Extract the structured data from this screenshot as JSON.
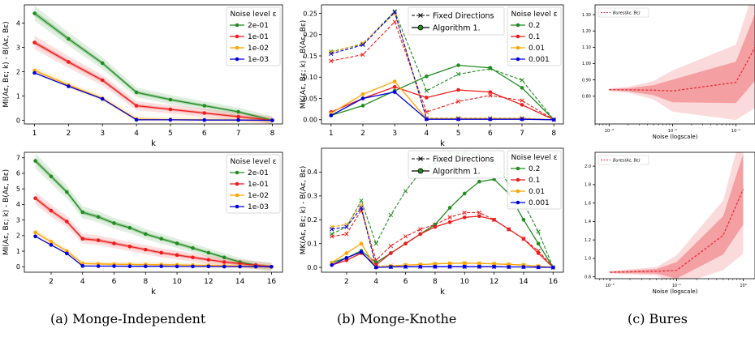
{
  "captions": [
    "(a) Monge-Independent",
    "(b) Monge-Knothe",
    "(c) Bures"
  ],
  "colors": {
    "s0": "#228B22",
    "s1": "#EE1C1C",
    "s2": "#FFA500",
    "s3": "#0000E0",
    "bures": "#E8303A"
  },
  "chart_data": [
    {
      "id": "mi-top",
      "type": "line",
      "grid": false,
      "legend_position": "top-right",
      "xlabel": "k",
      "ylabel": "MI(Aε, Bε; k) - B(Aε, Bε)",
      "xlim": [
        0.7,
        8.3
      ],
      "ylim": [
        -0.15,
        4.75
      ],
      "xticks": [
        1,
        2,
        3,
        4,
        5,
        6,
        7,
        8
      ],
      "yticks": [
        0,
        1,
        2,
        3,
        4
      ],
      "legend_title": "Noise level ε",
      "x": [
        1,
        2,
        3,
        4,
        5,
        6,
        7,
        8
      ],
      "series": [
        {
          "name": "2e-01",
          "values": [
            4.4,
            3.35,
            2.35,
            1.15,
            0.85,
            0.6,
            0.35,
            0.0
          ]
        },
        {
          "name": "1e-01",
          "values": [
            3.2,
            2.4,
            1.65,
            0.6,
            0.45,
            0.3,
            0.15,
            0.0
          ]
        },
        {
          "name": "1e-02",
          "values": [
            2.05,
            1.45,
            0.9,
            0.05,
            0.03,
            0.02,
            0.01,
            0.0
          ]
        },
        {
          "name": "1e-03",
          "values": [
            1.95,
            1.4,
            0.88,
            0.02,
            0.02,
            0.01,
            0.01,
            0.0
          ]
        }
      ]
    },
    {
      "id": "mk-top",
      "type": "line",
      "grid": false,
      "legend_position": "top-right",
      "xlabel": "k",
      "ylabel": "MK(Aε, Bε; k) - B(Aε, Bε)",
      "xlim": [
        0.7,
        8.3
      ],
      "ylim": [
        -0.01,
        0.27
      ],
      "xticks": [
        1,
        2,
        3,
        4,
        5,
        6,
        7,
        8
      ],
      "yticks": [
        0.0,
        0.05,
        0.1,
        0.15,
        0.2,
        0.25
      ],
      "legend_title": "Noise level ε",
      "style_legend": [
        "Fixed Directions",
        "Algorithm 1."
      ],
      "x": [
        1,
        2,
        3,
        4,
        5,
        6,
        7,
        8
      ],
      "series": [
        {
          "name": "0.2",
          "values": [
            0.01,
            0.033,
            0.068,
            0.102,
            0.128,
            0.122,
            0.075,
            0.0
          ]
        },
        {
          "name": "0.1",
          "values": [
            0.018,
            0.05,
            0.077,
            0.052,
            0.07,
            0.065,
            0.035,
            0.0
          ]
        },
        {
          "name": "0.01",
          "values": [
            0.015,
            0.06,
            0.09,
            0.002,
            0.002,
            0.002,
            0.002,
            0.0
          ]
        },
        {
          "name": "0.001",
          "values": [
            0.01,
            0.05,
            0.065,
            0.001,
            0.001,
            0.001,
            0.001,
            0.0
          ]
        }
      ],
      "fixed_series": [
        {
          "name": "0.2",
          "values": [
            0.16,
            0.178,
            0.255,
            0.068,
            0.107,
            0.12,
            0.093,
            0.0
          ]
        },
        {
          "name": "0.1",
          "values": [
            0.138,
            0.153,
            0.23,
            0.018,
            0.043,
            0.057,
            0.045,
            0.0
          ]
        },
        {
          "name": "0.01",
          "values": [
            0.158,
            0.18,
            0.25,
            0.004,
            0.004,
            0.004,
            0.004,
            0.0
          ]
        },
        {
          "name": "0.001",
          "values": [
            0.155,
            0.176,
            0.253,
            0.002,
            0.002,
            0.002,
            0.002,
            0.0
          ]
        }
      ]
    },
    {
      "id": "bures-top",
      "type": "line",
      "grid": false,
      "legend_position": "top-left",
      "xscale": "log",
      "xlabel": "Noise (logscale)",
      "ylabel": "",
      "xlim": [
        0.0006,
        0.2
      ],
      "ylim": [
        0.63,
        1.36
      ],
      "xticks": [
        0.001,
        0.01,
        0.1
      ],
      "xtick_labels": [
        "10⁻³",
        "10⁻²",
        "10⁻¹"
      ],
      "yticks": [
        0.8,
        0.9,
        1.0,
        1.1,
        1.2,
        1.3
      ],
      "legend": "Bures(Aε, Bε)",
      "x": [
        0.001,
        0.002,
        0.005,
        0.01,
        0.1,
        0.2
      ],
      "series": [
        {
          "name": "Bures(Aε, Bε)",
          "values": [
            0.84,
            0.839,
            0.837,
            0.832,
            0.885,
            1.1
          ]
        }
      ]
    },
    {
      "id": "mi-bottom",
      "type": "line",
      "grid": false,
      "legend_position": "top-right",
      "xlabel": "k",
      "ylabel": "MI(Aε, Bε; k) - B(Aε, Bε)",
      "xlim": [
        0.3,
        16.7
      ],
      "ylim": [
        -0.35,
        7.35
      ],
      "xticks": [
        2,
        4,
        6,
        8,
        10,
        12,
        14,
        16
      ],
      "yticks": [
        0,
        1,
        2,
        3,
        4,
        5,
        6,
        7
      ],
      "legend_title": "Noise level ε",
      "x": [
        1,
        2,
        3,
        4,
        5,
        6,
        7,
        8,
        9,
        10,
        11,
        12,
        13,
        14,
        15,
        16
      ],
      "series": [
        {
          "name": "2e-01",
          "values": [
            6.8,
            5.8,
            4.8,
            3.5,
            3.2,
            2.8,
            2.5,
            2.1,
            1.8,
            1.5,
            1.2,
            0.9,
            0.6,
            0.3,
            0.1,
            0.0
          ]
        },
        {
          "name": "1e-01",
          "values": [
            4.4,
            3.6,
            2.9,
            1.8,
            1.7,
            1.5,
            1.3,
            1.1,
            0.9,
            0.75,
            0.6,
            0.45,
            0.3,
            0.2,
            0.1,
            0.0
          ]
        },
        {
          "name": "1e-02",
          "values": [
            2.2,
            1.6,
            1.0,
            0.2,
            0.18,
            0.16,
            0.15,
            0.14,
            0.13,
            0.12,
            0.1,
            0.08,
            0.06,
            0.04,
            0.02,
            0.0
          ]
        },
        {
          "name": "1e-03",
          "values": [
            1.95,
            1.4,
            0.85,
            0.05,
            0.04,
            0.04,
            0.03,
            0.03,
            0.03,
            0.02,
            0.02,
            0.02,
            0.01,
            0.01,
            0.01,
            0.0
          ]
        }
      ]
    },
    {
      "id": "mk-bottom",
      "type": "line",
      "grid": false,
      "legend_position": "top-right",
      "xlabel": "k",
      "ylabel": "MK(Aε, Bε; k) - B(Aε, Bε)",
      "xlim": [
        0.3,
        16.7
      ],
      "ylim": [
        -0.02,
        0.5
      ],
      "xticks": [
        2,
        4,
        6,
        8,
        10,
        12,
        14,
        16
      ],
      "yticks": [
        0.0,
        0.1,
        0.2,
        0.3,
        0.4
      ],
      "legend_title": "Noise level ε",
      "style_legend": [
        "Fixed Directions",
        "Algorithm 1."
      ],
      "x": [
        1,
        2,
        3,
        4,
        5,
        6,
        7,
        8,
        9,
        10,
        11,
        12,
        13,
        14,
        15,
        16
      ],
      "series": [
        {
          "name": "0.2",
          "values": [
            0.02,
            0.04,
            0.07,
            0.02,
            0.06,
            0.1,
            0.14,
            0.18,
            0.25,
            0.31,
            0.36,
            0.37,
            0.31,
            0.2,
            0.1,
            0.0
          ]
        },
        {
          "name": "0.1",
          "values": [
            0.01,
            0.03,
            0.06,
            0.01,
            0.06,
            0.1,
            0.14,
            0.17,
            0.19,
            0.21,
            0.215,
            0.2,
            0.16,
            0.12,
            0.06,
            0.0
          ]
        },
        {
          "name": "0.01",
          "values": [
            0.02,
            0.06,
            0.1,
            0.0,
            0.005,
            0.01,
            0.012,
            0.015,
            0.017,
            0.018,
            0.017,
            0.015,
            0.013,
            0.01,
            0.005,
            0.0
          ]
        },
        {
          "name": "0.001",
          "values": [
            0.01,
            0.04,
            0.065,
            0.0,
            0.002,
            0.003,
            0.003,
            0.003,
            0.003,
            0.003,
            0.003,
            0.003,
            0.002,
            0.002,
            0.001,
            0.0
          ]
        }
      ],
      "fixed_series": [
        {
          "name": "0.2",
          "values": [
            0.14,
            0.17,
            0.28,
            0.1,
            0.22,
            0.32,
            0.4,
            0.44,
            0.48,
            0.48,
            0.47,
            0.44,
            0.35,
            0.27,
            0.15,
            0.0
          ]
        },
        {
          "name": "0.1",
          "values": [
            0.13,
            0.14,
            0.24,
            0.03,
            0.09,
            0.13,
            0.16,
            0.18,
            0.21,
            0.23,
            0.23,
            0.2,
            0.16,
            0.12,
            0.07,
            0.0
          ]
        },
        {
          "name": "0.01",
          "values": [
            0.17,
            0.18,
            0.26,
            0.005,
            0.008,
            0.01,
            0.012,
            0.015,
            0.017,
            0.018,
            0.017,
            0.015,
            0.012,
            0.01,
            0.005,
            0.0
          ]
        },
        {
          "name": "0.001",
          "values": [
            0.16,
            0.17,
            0.25,
            0.002,
            0.002,
            0.003,
            0.003,
            0.003,
            0.003,
            0.003,
            0.003,
            0.003,
            0.002,
            0.002,
            0.001,
            0.0
          ]
        }
      ]
    },
    {
      "id": "bures-bottom",
      "type": "line",
      "grid": false,
      "legend_position": "top-left",
      "xscale": "log",
      "xlabel": "Noise (logscale)",
      "ylabel": "",
      "xlim": [
        0.006,
        1.5
      ],
      "ylim": [
        0.78,
        2.15
      ],
      "xticks": [
        0.01,
        0.1,
        1.0
      ],
      "xtick_labels": [
        "10⁻²",
        "10⁻¹",
        "10⁰"
      ],
      "yticks": [
        0.8,
        1.0,
        1.2,
        1.4,
        1.6,
        1.8,
        2.0
      ],
      "legend": "Bures(Aε, Bε)",
      "x": [
        0.01,
        0.05,
        0.1,
        0.5,
        1.0
      ],
      "series": [
        {
          "name": "Bures(Aε, Bε)",
          "values": [
            0.85,
            0.86,
            0.87,
            1.25,
            1.75
          ]
        }
      ]
    }
  ]
}
